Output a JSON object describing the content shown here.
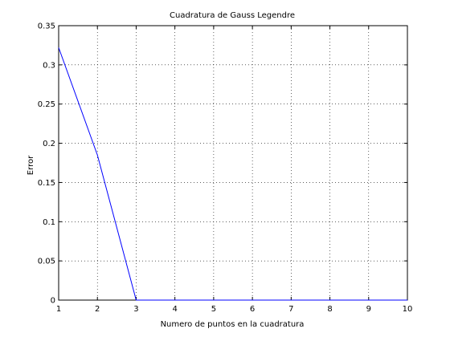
{
  "chart_data": {
    "type": "line",
    "title": "Cuadratura de Gauss Legendre",
    "xlabel": "Numero de puntos en la cuadratura",
    "ylabel": "Error",
    "xlim": [
      1,
      10
    ],
    "ylim": [
      0,
      0.35
    ],
    "xticks": [
      1,
      2,
      3,
      4,
      5,
      6,
      7,
      8,
      9,
      10
    ],
    "yticks": [
      0,
      0.05,
      0.1,
      0.15,
      0.2,
      0.25,
      0.3,
      0.35
    ],
    "grid": "dotted",
    "series": [
      {
        "color": "#0000ff",
        "x": [
          1,
          2,
          3,
          4,
          5,
          6,
          7,
          8,
          9,
          10
        ],
        "y": [
          0.322,
          0.185,
          0.0,
          0.0,
          0.0,
          0.0,
          0.0,
          0.0,
          0.0,
          0.0
        ]
      }
    ]
  }
}
